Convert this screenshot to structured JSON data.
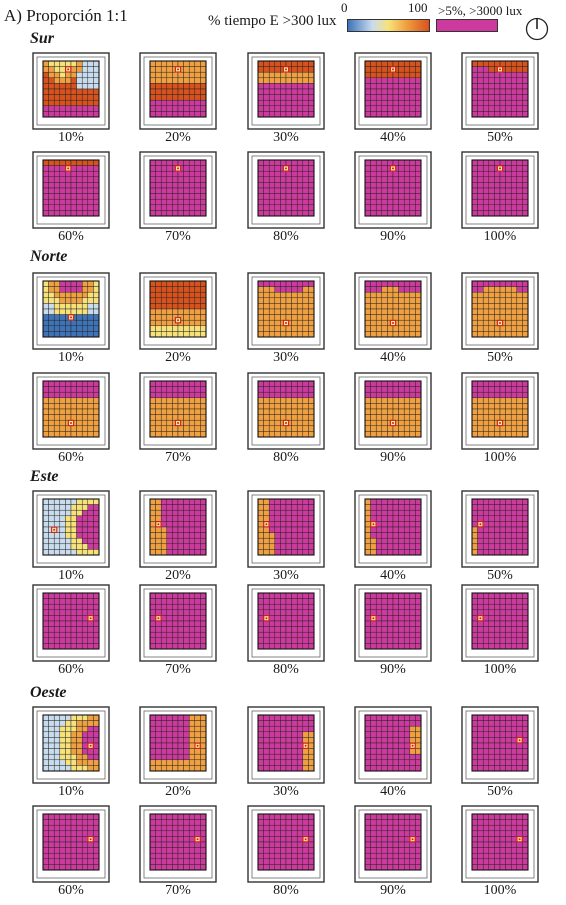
{
  "header": {
    "title": "A) Proporción 1:1",
    "legend_label": "% tiempo E >300 lux",
    "scale_min": "0",
    "scale_max": "100",
    "exceed_label": ">5%, >3000 lux"
  },
  "colors": {
    "scale_low": "#3f73b8",
    "scale_mid_low": "#c9dcee",
    "scale_mid": "#f7e27a",
    "scale_high_mid": "#f0a040",
    "scale_high": "#d8521e",
    "exceed": "#cd3a9e",
    "grid_line": "#222222",
    "sensor_marker": "#d4201a"
  },
  "sections": [
    {
      "name": "Sur",
      "rows": [
        [
          {
            "label": "10%",
            "pattern": "s10"
          },
          {
            "label": "20%",
            "pattern": "s20"
          },
          {
            "label": "30%",
            "pattern": "s30"
          },
          {
            "label": "40%",
            "pattern": "s40"
          },
          {
            "label": "50%",
            "pattern": "s50"
          }
        ],
        [
          {
            "label": "60%",
            "pattern": "s60"
          },
          {
            "label": "70%",
            "pattern": "all_magenta_top_marker"
          },
          {
            "label": "80%",
            "pattern": "all_magenta_top_marker"
          },
          {
            "label": "90%",
            "pattern": "all_magenta_top_marker"
          },
          {
            "label": "100%",
            "pattern": "all_magenta_top_marker"
          }
        ]
      ]
    },
    {
      "name": "Norte",
      "rows": [
        [
          {
            "label": "10%",
            "pattern": "n10"
          },
          {
            "label": "20%",
            "pattern": "n20"
          },
          {
            "label": "30%",
            "pattern": "n30"
          },
          {
            "label": "40%",
            "pattern": "n40"
          },
          {
            "label": "50%",
            "pattern": "n50"
          }
        ],
        [
          {
            "label": "60%",
            "pattern": "n60"
          },
          {
            "label": "70%",
            "pattern": "n60"
          },
          {
            "label": "80%",
            "pattern": "n60"
          },
          {
            "label": "90%",
            "pattern": "n60"
          },
          {
            "label": "100%",
            "pattern": "n60"
          }
        ]
      ]
    },
    {
      "name": "Este",
      "rows": [
        [
          {
            "label": "10%",
            "pattern": "e10"
          },
          {
            "label": "20%",
            "pattern": "e20"
          },
          {
            "label": "30%",
            "pattern": "e30"
          },
          {
            "label": "40%",
            "pattern": "e40"
          },
          {
            "label": "50%",
            "pattern": "e50"
          }
        ],
        [
          {
            "label": "60%",
            "pattern": "all_magenta_right_marker"
          },
          {
            "label": "70%",
            "pattern": "all_magenta_left_marker"
          },
          {
            "label": "80%",
            "pattern": "all_magenta_left_marker"
          },
          {
            "label": "90%",
            "pattern": "all_magenta_left_marker"
          },
          {
            "label": "100%",
            "pattern": "all_magenta_left_marker"
          }
        ]
      ]
    },
    {
      "name": "Oeste",
      "rows": [
        [
          {
            "label": "10%",
            "pattern": "o10"
          },
          {
            "label": "20%",
            "pattern": "o20"
          },
          {
            "label": "30%",
            "pattern": "o30"
          },
          {
            "label": "40%",
            "pattern": "o40"
          },
          {
            "label": "50%",
            "pattern": "all_magenta_right_marker"
          }
        ],
        [
          {
            "label": "60%",
            "pattern": "all_magenta_right_marker"
          },
          {
            "label": "70%",
            "pattern": "all_magenta_right_marker"
          },
          {
            "label": "80%",
            "pattern": "all_magenta_right_marker"
          },
          {
            "label": "90%",
            "pattern": "all_magenta_right_marker"
          },
          {
            "label": "100%",
            "pattern": "all_magenta_right_marker"
          }
        ]
      ]
    }
  ]
}
